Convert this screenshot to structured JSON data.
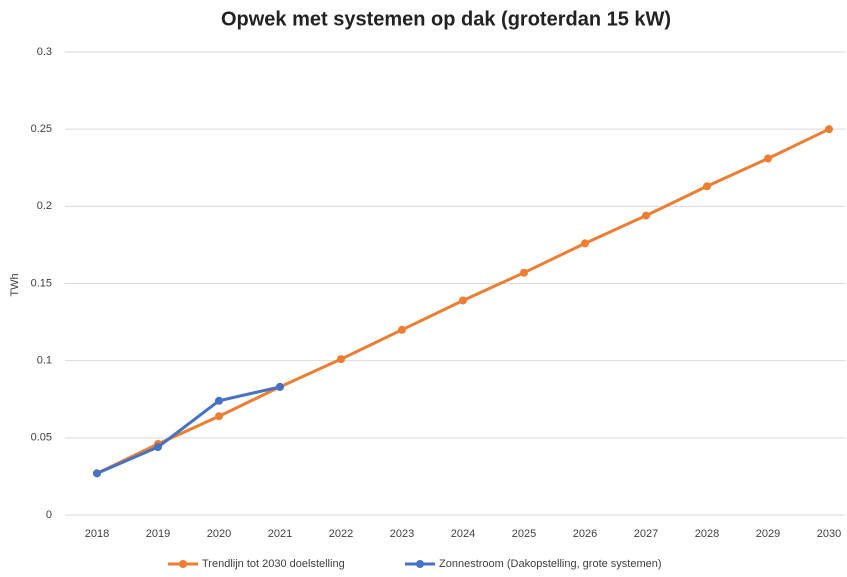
{
  "chart_data": {
    "type": "line",
    "title": "Opwek met systemen op dak (groterdan 15 kW)",
    "y_label": "TWh",
    "categories": [
      "2018",
      "2019",
      "2020",
      "2021",
      "2022",
      "2023",
      "2024",
      "2025",
      "2026",
      "2027",
      "2028",
      "2029",
      "2030"
    ],
    "series": [
      {
        "name": "Trendlijn tot 2030 doelstelling",
        "color": "#ed7d31",
        "values": [
          0.027,
          0.046,
          0.064,
          0.083,
          0.101,
          0.12,
          0.139,
          0.157,
          0.176,
          0.194,
          0.213,
          0.231,
          0.25
        ]
      },
      {
        "name": "Zonnestroom (Dakopstelling, grote systemen)",
        "color": "#4472c4",
        "values": [
          0.027,
          0.044,
          0.074,
          0.083,
          null,
          null,
          null,
          null,
          null,
          null,
          null,
          null,
          null
        ]
      }
    ],
    "ylim": [
      0,
      0.3
    ],
    "yticks": [
      0,
      0.05,
      0.1,
      0.15,
      0.2,
      0.25,
      0.3
    ],
    "grid": true,
    "legend": "bottom"
  }
}
